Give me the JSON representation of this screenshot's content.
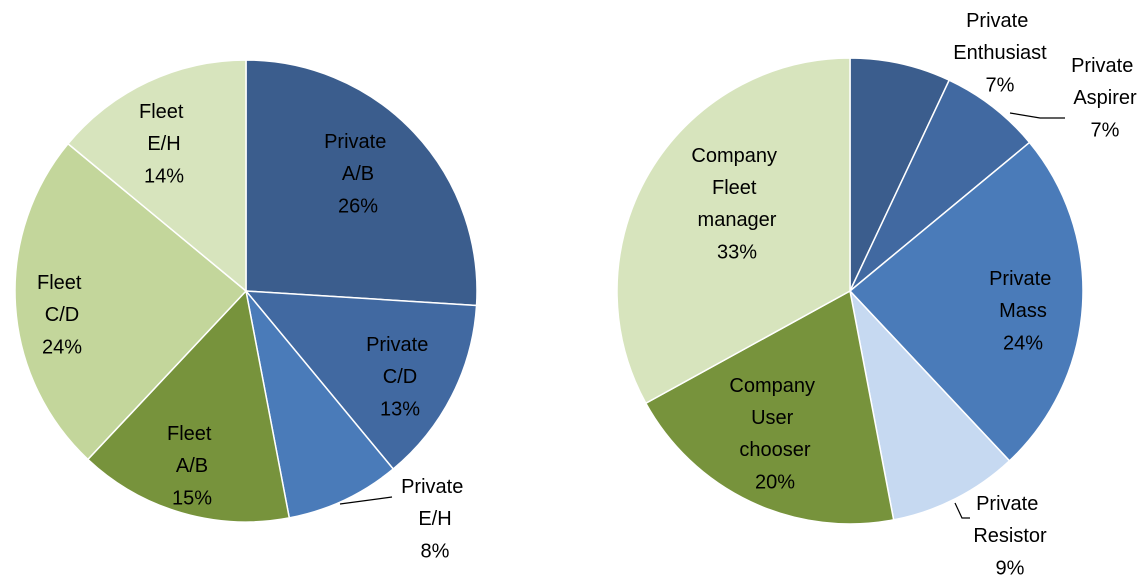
{
  "chart_data": [
    {
      "type": "pie",
      "categories": [
        "Private A/B",
        "Private C/D",
        "Private E/H",
        "Fleet A/B",
        "Fleet C/D",
        "Fleet E/H"
      ],
      "values": [
        26,
        13,
        8,
        15,
        24,
        14
      ],
      "value_labels": [
        "26%",
        "13%",
        "8%",
        "15%",
        "24%",
        "14%"
      ],
      "colors": [
        "#3b5d8d",
        "#4169a1",
        "#4a7bb9",
        "#77933c",
        "#c3d69b",
        "#d7e4bd"
      ]
    },
    {
      "type": "pie",
      "categories": [
        "Private Enthusiast",
        "Private Aspirer",
        "Private Mass",
        "Private Resistor",
        "Company User chooser",
        "Company Fleet manager"
      ],
      "values": [
        7,
        7,
        24,
        9,
        20,
        33
      ],
      "value_labels": [
        "7%",
        "7%",
        "24%",
        "9%",
        "20%",
        "33%"
      ],
      "colors": [
        "#3b5d8d",
        "#4169a1",
        "#4a7bb9",
        "#c6d9f1",
        "#77933c",
        "#d7e4bd"
      ]
    }
  ]
}
